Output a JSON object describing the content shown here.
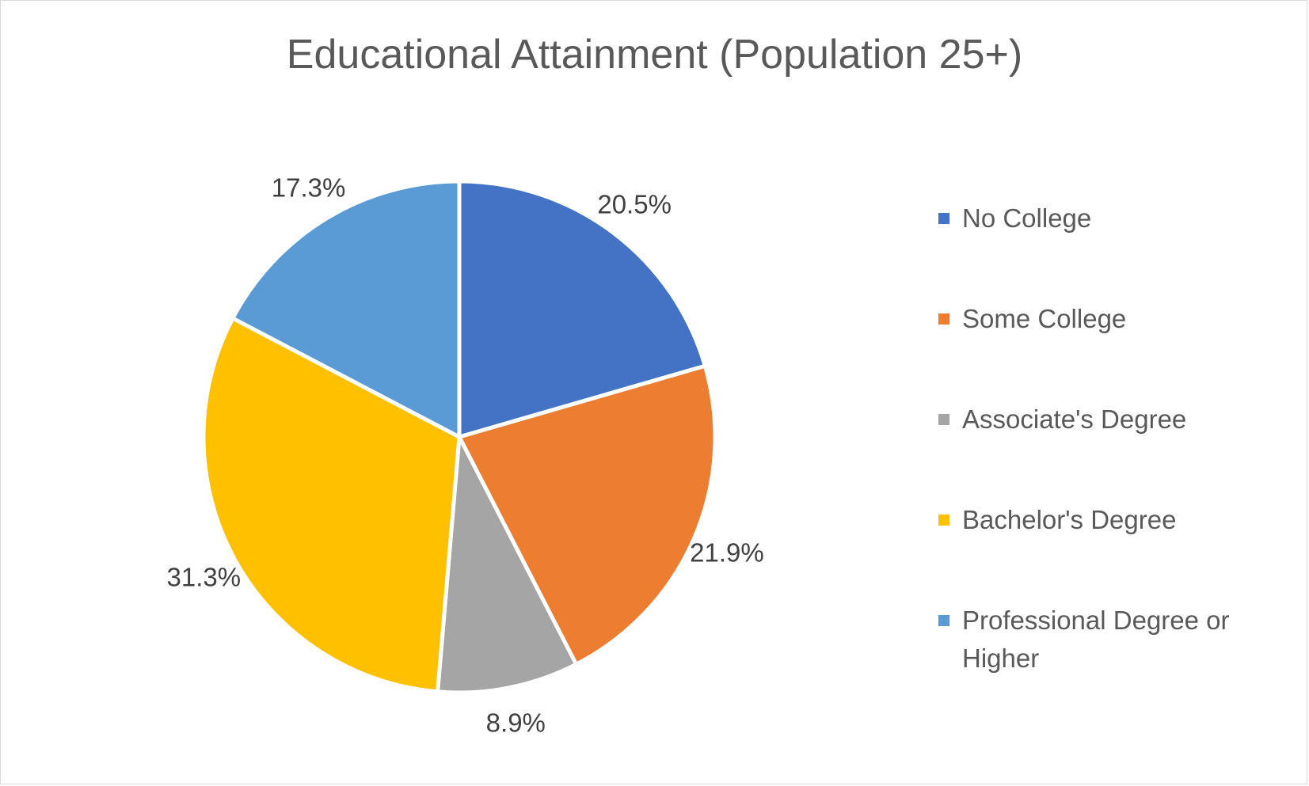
{
  "chart_data": {
    "type": "pie",
    "title": "Educational Attainment (Population 25+)",
    "categories": [
      "No College",
      "Some College",
      "Associate's Degree",
      "Bachelor's Degree",
      "Professional Degree or Higher"
    ],
    "values": [
      20.5,
      21.9,
      8.9,
      31.3,
      17.3
    ],
    "labels": [
      "20.5%",
      "21.9%",
      "8.9%",
      "31.3%",
      "17.3%"
    ],
    "colors": [
      "#4472c4",
      "#ed7d31",
      "#a5a5a5",
      "#ffc000",
      "#5b9bd5"
    ],
    "legend_position": "right"
  }
}
